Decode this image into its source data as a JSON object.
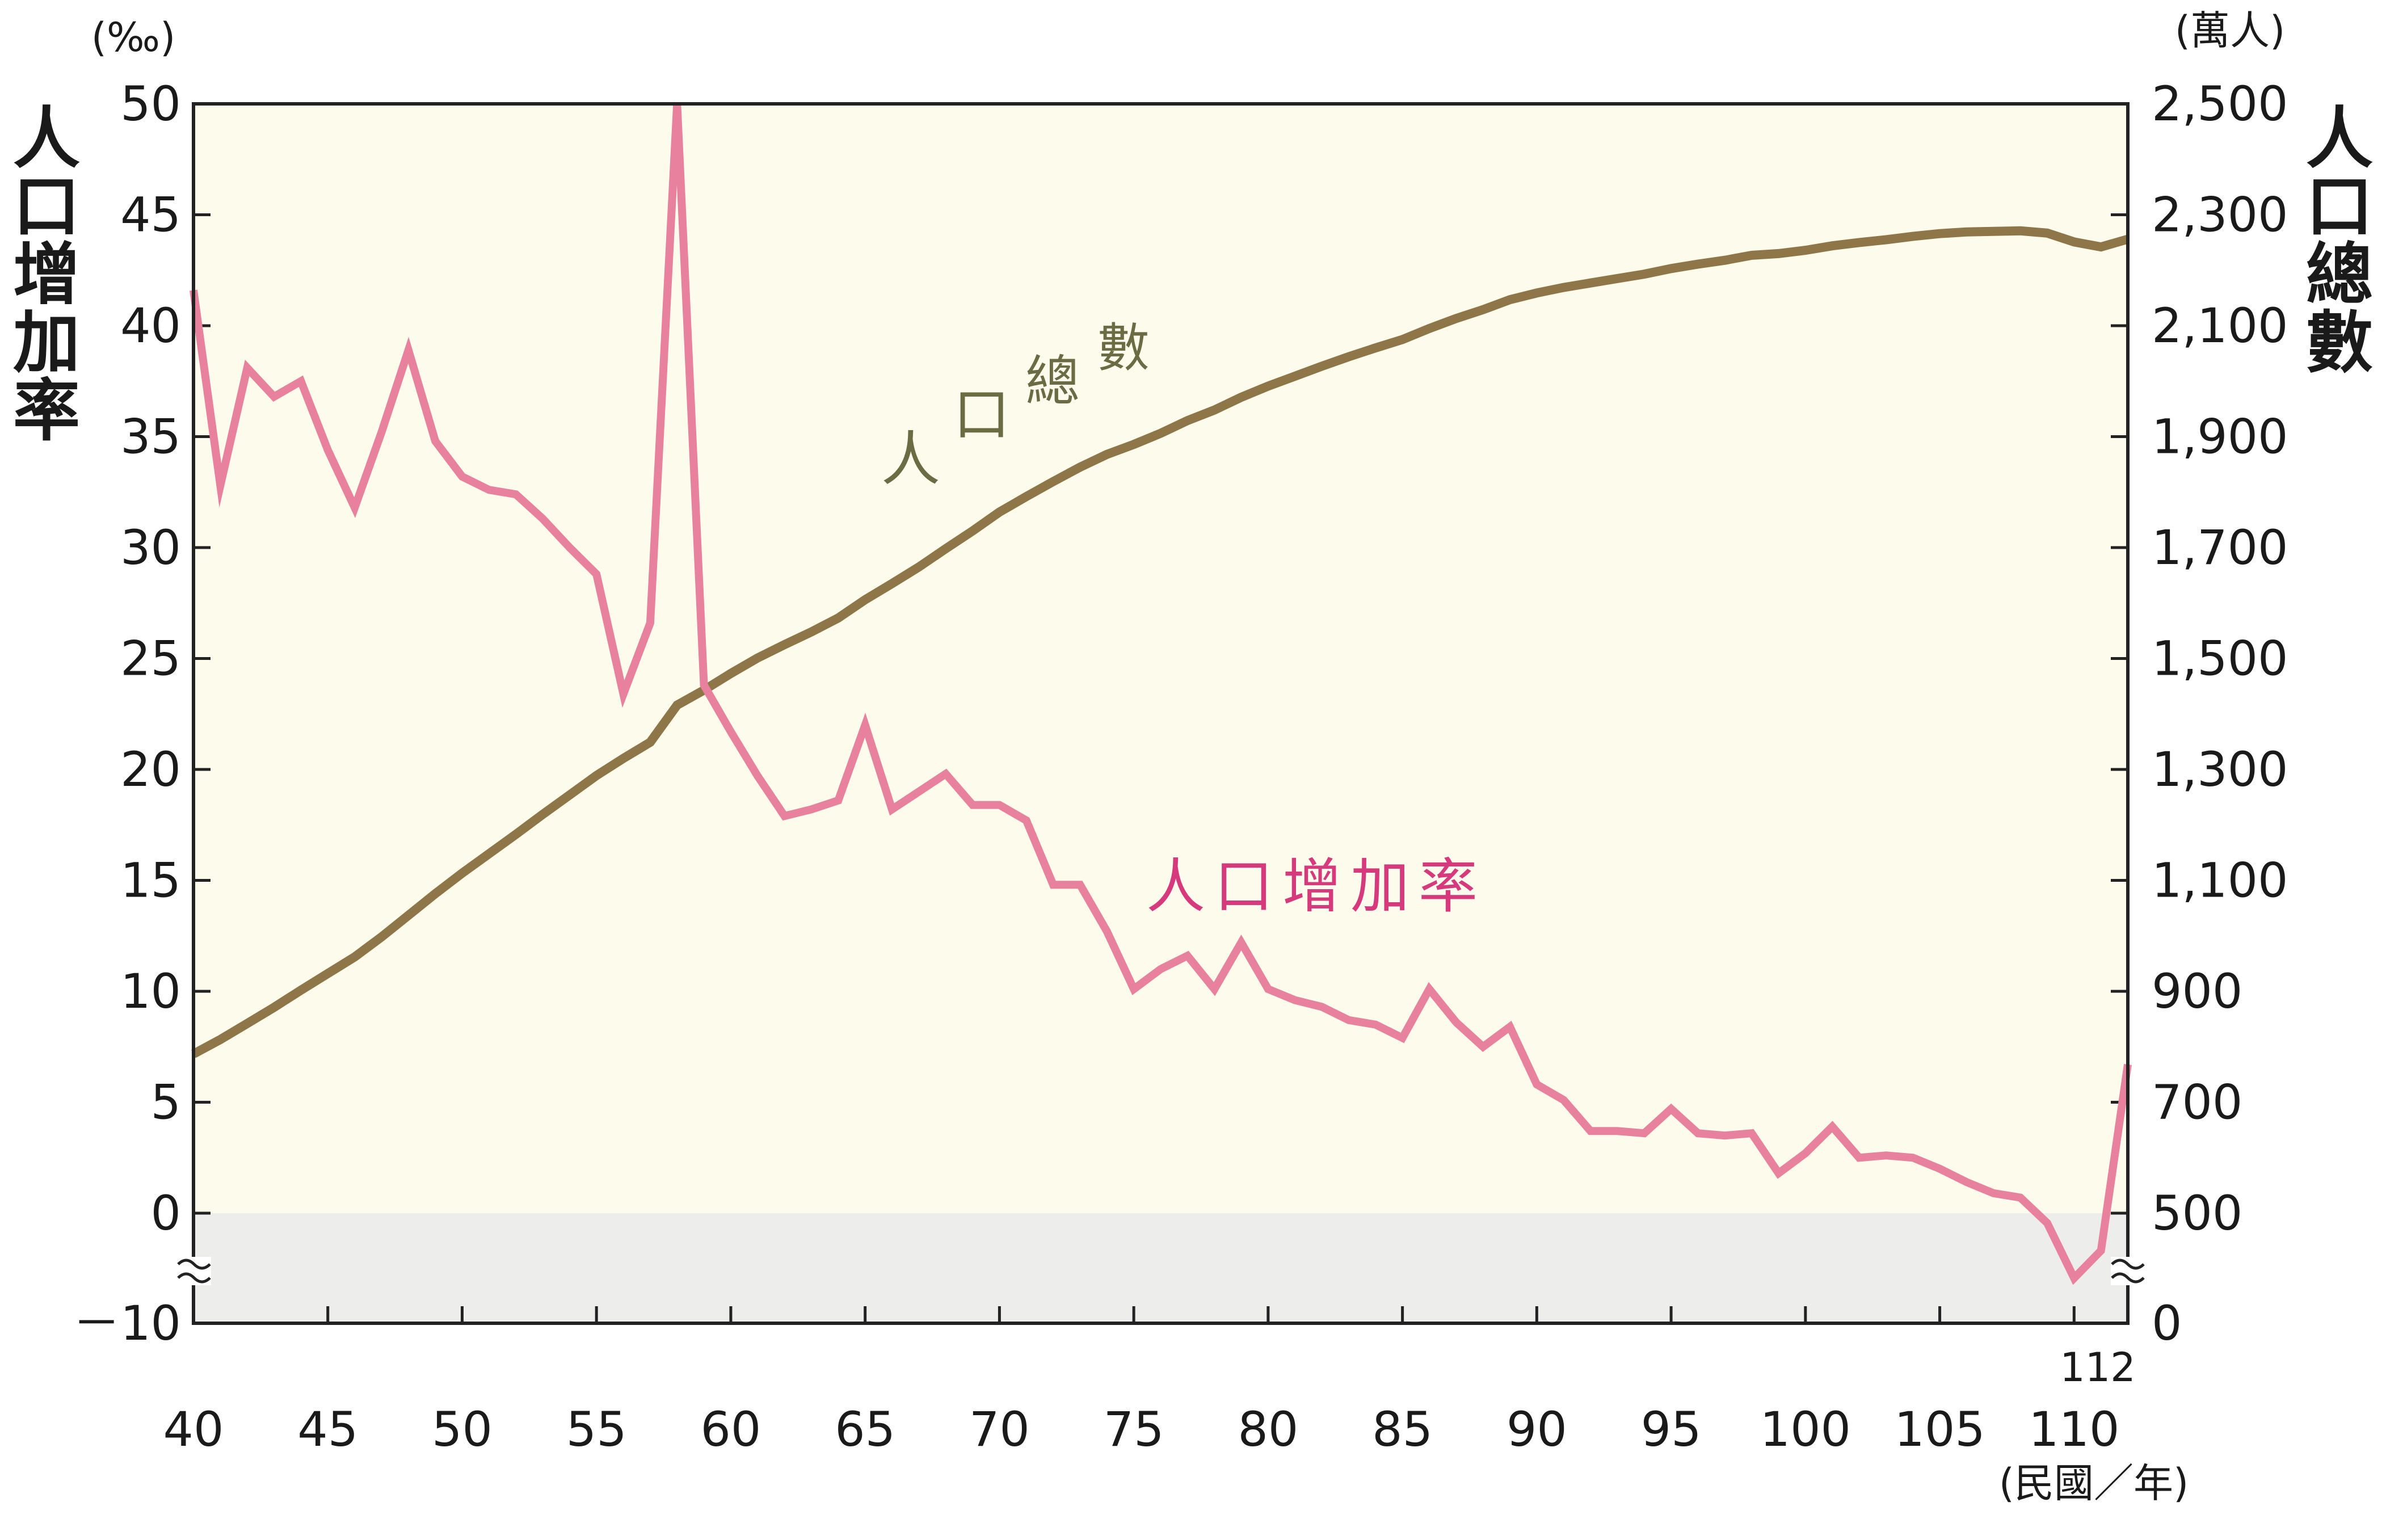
{
  "chart_data": {
    "type": "line",
    "x_unit": "(民國／年)",
    "x_ticks": [
      "40",
      "45",
      "50",
      "55",
      "60",
      "65",
      "70",
      "75",
      "80",
      "85",
      "90",
      "95",
      "100",
      "105",
      "110"
    ],
    "x_extra_tick": "112",
    "xlim": [
      40,
      112
    ],
    "left_axis": {
      "label": "人口增加率",
      "unit": "(‰)",
      "ticks": [
        "50",
        "45",
        "40",
        "35",
        "30",
        "25",
        "20",
        "15",
        "10",
        "5",
        "0",
        "－10"
      ],
      "zero_label_color": "#e0001a",
      "range": [
        -10,
        50
      ],
      "axis_break": true
    },
    "right_axis": {
      "label": "人口總數",
      "unit": "(萬人)",
      "ticks": [
        "2,500",
        "2,300",
        "2,100",
        "1,900",
        "1,700",
        "1,500",
        "1,300",
        "1,100",
        "900",
        "700",
        "500",
        "0"
      ],
      "range": [
        0,
        2500
      ],
      "axis_break": true
    },
    "background": {
      "positive_region": "#fdfbec",
      "negative_region": "#edeeec"
    },
    "series": [
      {
        "name": "人口總數",
        "axis": "right",
        "color": "#8e7648",
        "label_color": "#6b6b44",
        "x": [
          40,
          41,
          42,
          43,
          44,
          45,
          46,
          47,
          48,
          49,
          50,
          51,
          52,
          53,
          54,
          55,
          56,
          57,
          58,
          59,
          60,
          61,
          62,
          63,
          64,
          65,
          66,
          67,
          68,
          69,
          70,
          71,
          72,
          73,
          74,
          75,
          76,
          77,
          78,
          79,
          80,
          81,
          82,
          83,
          84,
          85,
          86,
          87,
          88,
          89,
          90,
          91,
          92,
          93,
          94,
          95,
          96,
          97,
          98,
          99,
          100,
          101,
          102,
          103,
          104,
          105,
          106,
          107,
          108,
          109,
          110,
          111,
          112
        ],
        "values": [
          787,
          813,
          842,
          871,
          902,
          932,
          962,
          998,
          1037,
          1076,
          1113,
          1148,
          1183,
          1219,
          1254,
          1289,
          1320,
          1349,
          1416,
          1443,
          1473,
          1501,
          1525,
          1548,
          1573,
          1606,
          1635,
          1665,
          1698,
          1730,
          1764,
          1792,
          1819,
          1845,
          1868,
          1886,
          1906,
          1929,
          1948,
          1971,
          1991,
          2009,
          2027,
          2044,
          2060,
          2075,
          2095,
          2113,
          2129,
          2147,
          2159,
          2169,
          2177,
          2185,
          2193,
          2203,
          2211,
          2218,
          2227,
          2230,
          2236,
          2244,
          2250,
          2255,
          2261,
          2266,
          2269,
          2270,
          2271,
          2267,
          2251,
          2242,
          2256
        ]
      },
      {
        "name": "人口增加率",
        "axis": "left",
        "color": "#e8819e",
        "label_color": "#d63a7c",
        "x": [
          40,
          41,
          42,
          43,
          44,
          45,
          46,
          47,
          48,
          49,
          50,
          51,
          52,
          53,
          54,
          55,
          56,
          57,
          58,
          59,
          60,
          61,
          62,
          63,
          64,
          65,
          66,
          67,
          68,
          69,
          70,
          71,
          72,
          73,
          74,
          75,
          76,
          77,
          78,
          79,
          80,
          81,
          82,
          83,
          84,
          85,
          86,
          87,
          88,
          89,
          90,
          91,
          92,
          93,
          94,
          95,
          96,
          97,
          98,
          99,
          100,
          101,
          102,
          103,
          104,
          105,
          106,
          107,
          108,
          109,
          110,
          111,
          112
        ],
        "values": [
          41.6,
          32.8,
          38.1,
          36.8,
          37.5,
          34.4,
          31.8,
          35.2,
          38.9,
          34.8,
          33.2,
          32.6,
          32.4,
          31.3,
          30.0,
          28.8,
          23.4,
          26.6,
          50.0,
          23.8,
          21.7,
          19.7,
          17.9,
          18.2,
          18.6,
          22.0,
          18.2,
          19.0,
          19.8,
          18.4,
          18.4,
          17.7,
          14.8,
          14.8,
          12.7,
          10.1,
          11.0,
          11.6,
          10.1,
          12.2,
          10.1,
          9.6,
          9.3,
          8.7,
          8.5,
          7.9,
          10.1,
          8.6,
          7.5,
          8.4,
          5.8,
          5.1,
          3.7,
          3.7,
          3.6,
          4.7,
          3.6,
          3.5,
          3.6,
          1.8,
          2.7,
          3.9,
          2.5,
          2.6,
          2.5,
          2.0,
          1.4,
          0.9,
          0.7,
          -0.9,
          -5.9,
          -3.4,
          6.7
        ]
      }
    ]
  }
}
